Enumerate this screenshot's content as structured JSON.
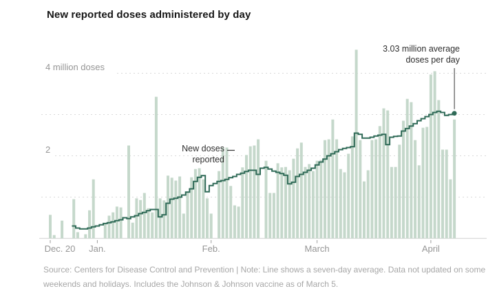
{
  "title": "New reported doses administered by day",
  "source_note": "Source: Centers for Disease Control and Prevention | Note: Line shows a seven-day average. Data not updated on some weekends and holidays. Includes the Johnson & Johnson vaccine as of March 5.",
  "y_axis": {
    "label_4m": "4 million doses",
    "label_2": "2"
  },
  "annotations": {
    "average": {
      "line1": "3.03 million average",
      "line2": "doses per day"
    },
    "new_doses": {
      "line1": "New doses",
      "line2": "reported"
    }
  },
  "chart_data": {
    "type": "bar",
    "subtype": "daily bars with seven-day-average step line",
    "title": "New reported doses administered by day",
    "xlabel": "",
    "ylabel": "million doses",
    "ylim": [
      0,
      4.8
    ],
    "grid": "dotted horizontal gridlines at 1, 2, 3, 4 million",
    "legend_position": "none (annotated directly)",
    "x_start": "Dec. 20",
    "x_ticks": [
      {
        "day": 0,
        "label": "Dec. 20"
      },
      {
        "day": 12,
        "label": "Jan."
      },
      {
        "day": 41,
        "label": "Feb."
      },
      {
        "day": 68,
        "label": "March"
      },
      {
        "day": 97,
        "label": "April"
      }
    ],
    "y_gridlines_millions": [
      1,
      2,
      3,
      4
    ],
    "series": [
      {
        "name": "New doses reported",
        "style": "bars",
        "values_millions": [
          0.57,
          0.08,
          0,
          0.43,
          0,
          0,
          0.95,
          0.15,
          0,
          0.1,
          0.68,
          1.43,
          0,
          0,
          0.35,
          0.55,
          0.63,
          0.77,
          0.75,
          0,
          2.25,
          0.38,
          0.97,
          0.93,
          1.1,
          0.73,
          0.63,
          3.43,
          0.97,
          0.92,
          1.52,
          1.47,
          1.4,
          1.5,
          0.6,
          1.13,
          1.48,
          1.68,
          1.7,
          1.43,
          0.97,
          0.6,
          0,
          1.63,
          2.2,
          2.2,
          1.27,
          0.8,
          0.77,
          1.72,
          2.02,
          2.23,
          2.25,
          2.4,
          0,
          1.88,
          1.1,
          1.1,
          1.82,
          1.72,
          1.73,
          1.65,
          1.93,
          2.18,
          2.32,
          1.73,
          1.8,
          1.63,
          1.88,
          1.9,
          2.38,
          2.4,
          2.88,
          2.4,
          1.68,
          1.6,
          2.05,
          2.47,
          4.57,
          2.38,
          1.38,
          1.65,
          2.38,
          2.4,
          2.72,
          3.15,
          3.1,
          1.73,
          1.73,
          2.27,
          2.85,
          3.38,
          3.3,
          2.38,
          1.77,
          2.68,
          2.7,
          3.97,
          4.05,
          3.35,
          2.15,
          2.15,
          1.43,
          2.88
        ]
      },
      {
        "name": "Seven-day average",
        "style": "step-line",
        "start_day_index": 6,
        "values_millions": [
          0.3,
          0.25,
          0.23,
          0.23,
          0.25,
          0.28,
          0.3,
          0.33,
          0.36,
          0.38,
          0.4,
          0.43,
          0.45,
          0.5,
          0.48,
          0.52,
          0.55,
          0.6,
          0.63,
          0.67,
          0.7,
          0.7,
          0.52,
          0.57,
          0.85,
          0.95,
          0.97,
          1.0,
          1.05,
          1.12,
          1.2,
          1.38,
          1.48,
          1.52,
          1.13,
          1.28,
          1.33,
          1.38,
          1.4,
          1.43,
          1.47,
          1.5,
          1.55,
          1.58,
          1.62,
          1.65,
          1.65,
          1.55,
          1.7,
          1.72,
          1.68,
          1.63,
          1.6,
          1.57,
          1.53,
          1.32,
          1.36,
          1.5,
          1.55,
          1.6,
          1.65,
          1.7,
          1.78,
          1.85,
          1.92,
          2.0,
          2.05,
          2.1,
          2.15,
          2.18,
          2.2,
          2.22,
          2.55,
          2.52,
          2.43,
          2.43,
          2.45,
          2.48,
          2.5,
          2.52,
          2.27,
          2.45,
          2.47,
          2.48,
          2.6,
          2.66,
          2.72,
          2.78,
          2.85,
          2.9,
          2.95,
          3.0,
          3.05,
          3.08,
          3.05,
          2.98,
          3.0,
          3.03
        ],
        "end_value_millions": 3.03,
        "end_value_label": "3.03 million average doses per day"
      }
    ],
    "colors": {
      "bar": "#c5d8cb",
      "line": "#2f6a57",
      "end_dot": "#2f6a57",
      "gridline": "#d9d9d9",
      "axis_line": "#dadada",
      "tick_mark": "#9a9a9a",
      "axis_label": "#959595",
      "annotation_text": "#2e2e2e",
      "annotation_pointer": "#333333",
      "title_text": "#161616",
      "source_text": "#a6a6a6",
      "background": "#ffffff"
    }
  }
}
